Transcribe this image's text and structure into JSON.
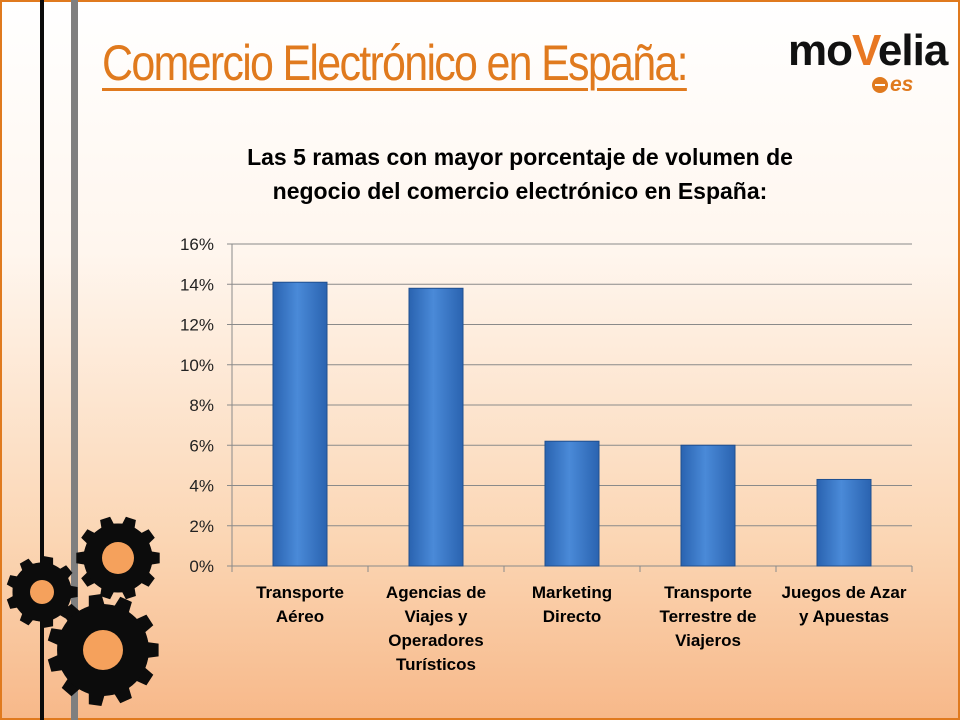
{
  "slide": {
    "title": "Comercio Electrónico en España:",
    "logo": {
      "text_a": "mo",
      "text_b": "V",
      "text_c": "elia",
      "suffix": "es"
    }
  },
  "colors": {
    "accent": "#e07a1e",
    "bar": "#3b78c9",
    "bar_dark": "#1f4f8f"
  },
  "icons": [
    "gear-icon",
    "gear-icon",
    "gear-icon"
  ],
  "chart_data": {
    "type": "bar",
    "title_lines": [
      "Las 5 ramas con mayor porcentaje de volumen de",
      "negocio del comercio electrónico en España:"
    ],
    "categories": [
      [
        "Transporte",
        "Aéreo"
      ],
      [
        "Agencias de",
        "Viajes y",
        "Operadores",
        "Turísticos"
      ],
      [
        "Marketing",
        "Directo"
      ],
      [
        "Transporte",
        "Terrestre de",
        "Viajeros"
      ],
      [
        "Juegos de Azar",
        "y Apuestas"
      ]
    ],
    "values": [
      14.1,
      13.8,
      6.2,
      6.0,
      4.3
    ],
    "yticks": [
      "0%",
      "2%",
      "4%",
      "6%",
      "8%",
      "10%",
      "12%",
      "14%",
      "16%"
    ],
    "ylim": [
      0,
      16
    ],
    "ystep": 2,
    "grid": true
  }
}
